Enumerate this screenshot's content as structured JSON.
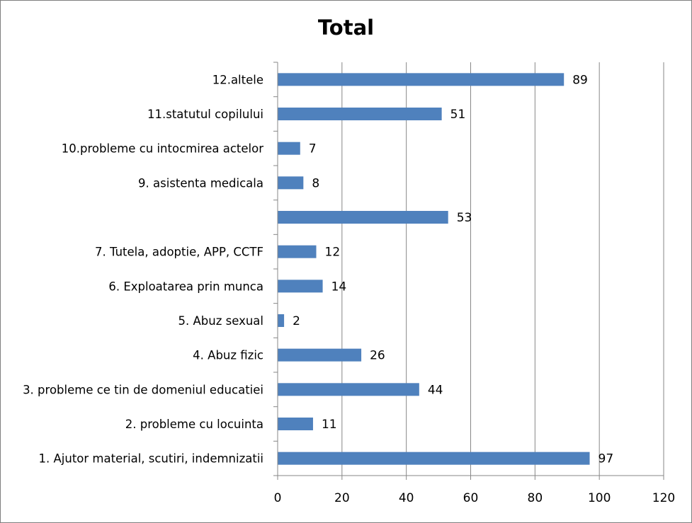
{
  "chart_data": {
    "type": "bar",
    "orientation": "horizontal",
    "title": "Total",
    "xlabel": "",
    "ylabel": "",
    "xlim": [
      0,
      120
    ],
    "ticks": [
      0,
      20,
      40,
      60,
      80,
      100,
      120
    ],
    "grid": "vertical",
    "legend": "none",
    "categories": [
      "1. Ajutor material, scutiri, indemnizatii",
      "2. probleme cu locuinta",
      "3. probleme ce tin de domeniul educatiei",
      "4. Abuz fizic",
      "5. Abuz sexual",
      "6. Exploatarea prin munca",
      "7. Tutela, adoptie, APP, CCTF",
      "",
      "9. asistenta medicala",
      "10.probleme cu intocmirea actelor",
      "11.statutul copilului",
      "12.altele"
    ],
    "values": [
      97,
      11,
      44,
      26,
      2,
      14,
      12,
      53,
      8,
      7,
      51,
      89
    ],
    "bar_color": "#4f81bd",
    "grid_color": "#878787"
  }
}
